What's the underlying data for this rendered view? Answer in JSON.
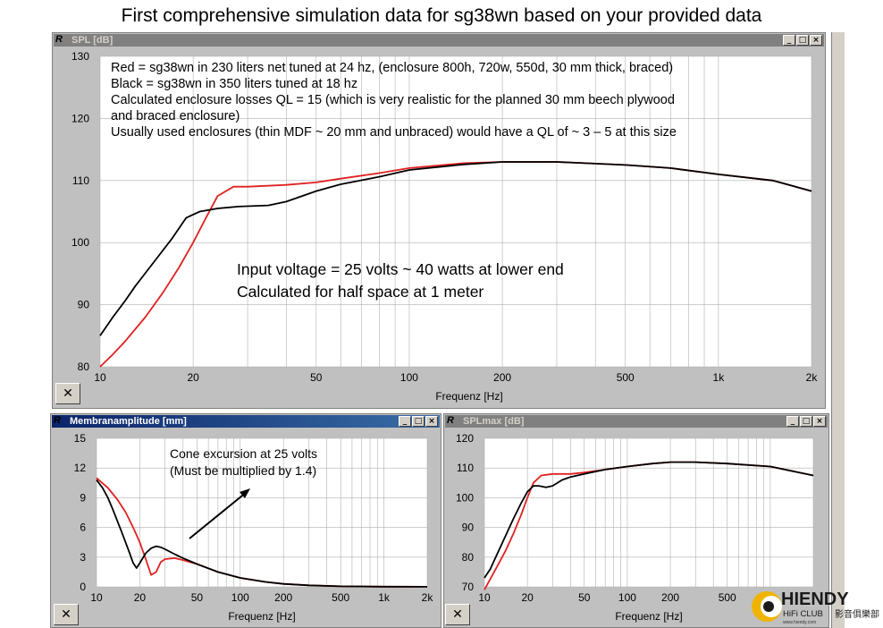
{
  "page_title": "First comprehensive simulation data for sg38wn based on your provided data",
  "window_controls": {
    "minimize": "_",
    "maximize": "□",
    "close": "×"
  },
  "close_x_glyph": "✕",
  "spl_window": {
    "title": "SPL [dB]",
    "icon": "R",
    "notes": [
      "Red = sg38wn in 230 liters net tuned at 24 hz, (enclosure 800h, 720w, 550d, 30 mm thick, braced)",
      "Black = sg38wn in 350 liters tuned at 18 hz",
      "Calculated enclosure losses QL = 15 (which is very realistic for the planned 30 mm beech plywood",
      "and braced enclosure)",
      "Usually used enclosures (thin MDF ~ 20 mm and unbraced) would have a QL of ~ 3 – 5 at this size"
    ],
    "center_notes": [
      "Input voltage = 25 volts ~ 40 watts at lower end",
      "Calculated for half space at 1 meter"
    ],
    "xlabel": "Frequenz [Hz]"
  },
  "amp_window": {
    "title": "Membranamplitude [mm]",
    "icon": "R",
    "notes": [
      "Cone excursion at 25 volts",
      "(Must be multiplied by 1.4)"
    ],
    "xlabel": "Frequenz [Hz]"
  },
  "splmax_window": {
    "title": "SPLmax [dB]",
    "icon": "R",
    "xlabel": "Frequenz [Hz]"
  },
  "logo": {
    "brand": "HIENDY",
    "sub": "HiFi CLUB",
    "url": "www.hiendy.com",
    "chinese": "影音俱樂部"
  },
  "colors": {
    "red": "#e02020",
    "black": "#000000",
    "grid": "#b0b0b0"
  },
  "chart_data": [
    {
      "type": "line",
      "title": "SPL [dB]",
      "xlabel": "Frequenz [Hz]",
      "ylabel": "",
      "xscale": "log",
      "xlim": [
        10,
        2000
      ],
      "ylim": [
        80,
        130
      ],
      "xticks": [
        10,
        20,
        50,
        100,
        200,
        500,
        1000,
        2000
      ],
      "xticklabels": [
        "10",
        "20",
        "50",
        "100",
        "200",
        "500",
        "1k",
        "2k"
      ],
      "yticks": [
        80,
        90,
        100,
        110,
        120,
        130
      ],
      "grid": true,
      "series": [
        {
          "color": "red",
          "x": [
            10,
            11,
            12,
            14,
            16,
            18,
            20,
            22,
            24,
            27,
            30,
            40,
            50,
            60,
            80,
            100,
            150,
            200,
            300,
            500,
            700,
            1000,
            1500,
            2000
          ],
          "y": [
            80,
            82,
            84,
            88,
            92,
            96,
            100,
            104,
            107.5,
            109,
            109,
            109.3,
            109.7,
            110.3,
            111.2,
            112,
            112.8,
            113,
            113,
            112.5,
            112,
            111,
            110,
            108.3
          ]
        },
        {
          "color": "black",
          "x": [
            10,
            11,
            12,
            13,
            15,
            17,
            19,
            21,
            24,
            28,
            35,
            40,
            50,
            60,
            80,
            100,
            150,
            200,
            300,
            500,
            700,
            1000,
            1500,
            2000
          ],
          "y": [
            85,
            88,
            90.5,
            93,
            97,
            100.5,
            104,
            105,
            105.5,
            105.8,
            106,
            106.6,
            108.3,
            109.4,
            110.6,
            111.7,
            112.6,
            113,
            113,
            112.5,
            112,
            111,
            110,
            108.3
          ]
        }
      ]
    },
    {
      "type": "line",
      "title": "Membranamplitude [mm]",
      "xlabel": "Frequenz [Hz]",
      "ylabel": "",
      "xscale": "log",
      "xlim": [
        10,
        2000
      ],
      "ylim": [
        0,
        15
      ],
      "xticks": [
        10,
        20,
        50,
        100,
        200,
        500,
        1000,
        2000
      ],
      "xticklabels": [
        "10",
        "20",
        "50",
        "100",
        "200",
        "500",
        "1k",
        "2k"
      ],
      "yticks": [
        0,
        3,
        6,
        9,
        12,
        15
      ],
      "grid": true,
      "series": [
        {
          "color": "red",
          "x": [
            10,
            12,
            14,
            16,
            18,
            20,
            22,
            24,
            26,
            28,
            30,
            35,
            40,
            50,
            70,
            100,
            150,
            200,
            300,
            500,
            1000,
            2000
          ],
          "y": [
            11,
            10,
            8.8,
            7.5,
            6,
            4.5,
            2.8,
            1.2,
            1.5,
            2.5,
            2.8,
            2.9,
            2.7,
            2.3,
            1.5,
            0.9,
            0.5,
            0.3,
            0.15,
            0.05,
            0.02,
            0.01
          ]
        },
        {
          "color": "black",
          "x": [
            10,
            11,
            12,
            13,
            15,
            17,
            18,
            19,
            20,
            22,
            24,
            26,
            28,
            30,
            35,
            40,
            50,
            70,
            100,
            150,
            200,
            300,
            500,
            1000,
            2000
          ],
          "y": [
            10.8,
            10,
            9,
            7.8,
            5.5,
            3.4,
            2.4,
            1.9,
            2.4,
            3.4,
            3.9,
            4.1,
            4,
            3.8,
            3.3,
            2.9,
            2.3,
            1.5,
            0.9,
            0.5,
            0.3,
            0.15,
            0.05,
            0.02,
            0.01
          ]
        }
      ]
    },
    {
      "type": "line",
      "title": "SPLmax [dB]",
      "xlabel": "Frequenz [Hz]",
      "ylabel": "",
      "xscale": "log",
      "xlim": [
        10,
        2000
      ],
      "ylim": [
        70,
        120
      ],
      "xticks": [
        10,
        20,
        50,
        100,
        200,
        500
      ],
      "xticklabels": [
        "10",
        "20",
        "50",
        "100",
        "200",
        "500"
      ],
      "yticks": [
        70,
        80,
        90,
        100,
        110,
        120
      ],
      "grid": true,
      "series": [
        {
          "color": "red",
          "x": [
            10,
            12,
            14,
            16,
            18,
            20,
            22,
            25,
            30,
            40,
            50,
            70,
            100,
            150,
            200,
            300,
            500,
            1000,
            2000
          ],
          "y": [
            69,
            76,
            82,
            88,
            94,
            100,
            105,
            107.5,
            108,
            108,
            108.5,
            109.5,
            110.5,
            111.5,
            112,
            112,
            111.5,
            110.5,
            107.5
          ]
        },
        {
          "color": "black",
          "x": [
            10,
            11,
            12,
            14,
            16,
            18,
            20,
            22,
            24,
            27,
            30,
            35,
            40,
            50,
            70,
            100,
            150,
            200,
            300,
            500,
            1000,
            2000
          ],
          "y": [
            73,
            76,
            80,
            87,
            93,
            98,
            102,
            104,
            104,
            103.5,
            104,
            106,
            107,
            108,
            109.5,
            110.5,
            111.5,
            112,
            112,
            111.5,
            110.5,
            107.5
          ]
        }
      ]
    }
  ]
}
